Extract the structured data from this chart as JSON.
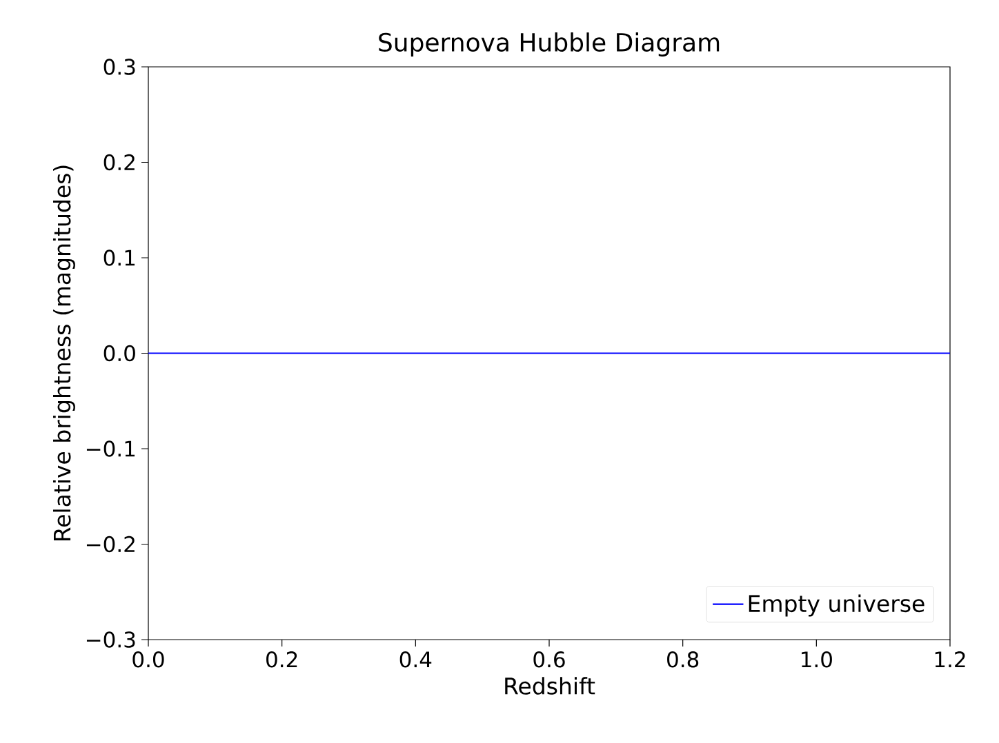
{
  "chart_data": {
    "type": "line",
    "title": "Supernova Hubble Diagram",
    "xlabel": "Redshift",
    "ylabel": "Relative brightness (magnitudes)",
    "x": [
      0,
      1.2
    ],
    "series": [
      {
        "name": "Empty universe",
        "color": "#0000ff",
        "values": [
          0,
          0
        ]
      }
    ],
    "xlim": [
      0,
      1.2
    ],
    "ylim": [
      -0.3,
      0.3
    ],
    "xticks": [
      {
        "value": 0,
        "label": "0.0"
      },
      {
        "value": 0.2,
        "label": "0.2"
      },
      {
        "value": 0.4,
        "label": "0.4"
      },
      {
        "value": 0.6,
        "label": "0.6"
      },
      {
        "value": 0.8,
        "label": "0.8"
      },
      {
        "value": 1.0,
        "label": "1.0"
      },
      {
        "value": 1.2,
        "label": "1.2"
      }
    ],
    "yticks": [
      {
        "value": -0.3,
        "label": "−0.3"
      },
      {
        "value": -0.2,
        "label": "−0.2"
      },
      {
        "value": -0.1,
        "label": "−0.1"
      },
      {
        "value": 0,
        "label": "0.0"
      },
      {
        "value": 0.1,
        "label": "0.1"
      },
      {
        "value": 0.2,
        "label": "0.2"
      },
      {
        "value": 0.3,
        "label": "0.3"
      }
    ],
    "legend": "bottom right",
    "grid": false,
    "marker": "none",
    "line_style": "solid"
  }
}
